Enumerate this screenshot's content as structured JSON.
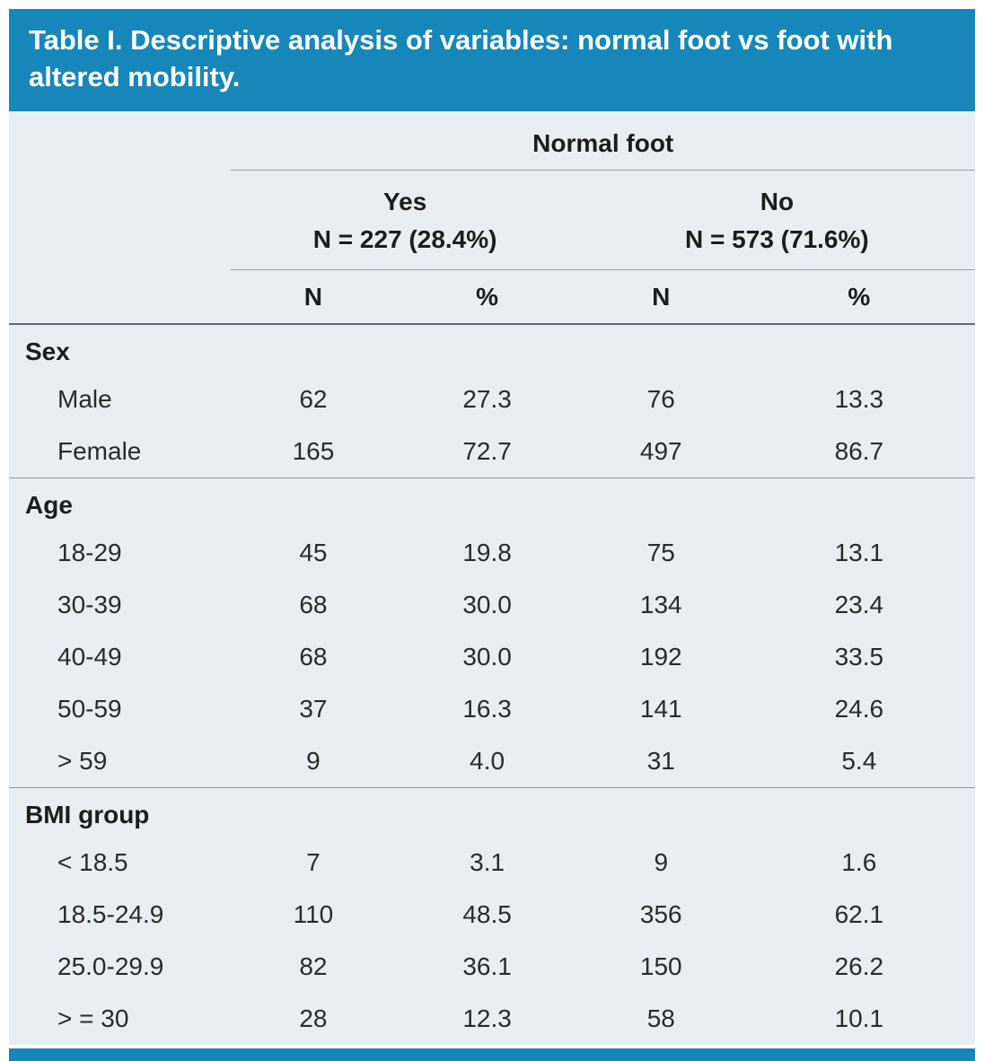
{
  "title": "Table I. Descriptive analysis of variables: normal foot vs foot with altered mobility.",
  "colors": {
    "header_bg": "#1787b9",
    "body_bg": "#e9eef4",
    "rule_light": "#98a2ab",
    "rule_dark": "#5f6c77",
    "text": "#212121"
  },
  "table": {
    "group_header": "Normal foot",
    "groups": [
      {
        "label": "Yes",
        "sub": "N = 227 (28.4%)"
      },
      {
        "label": "No",
        "sub": "N = 573 (71.6%)"
      }
    ],
    "subheaders": [
      "N",
      "%",
      "N",
      "%"
    ],
    "sections": [
      {
        "name": "Sex",
        "rows": [
          {
            "label": "Male",
            "values": [
              "62",
              "27.3",
              "76",
              "13.3"
            ]
          },
          {
            "label": "Female",
            "values": [
              "165",
              "72.7",
              "497",
              "86.7"
            ]
          }
        ]
      },
      {
        "name": "Age",
        "rows": [
          {
            "label": "18-29",
            "values": [
              "45",
              "19.8",
              "75",
              "13.1"
            ]
          },
          {
            "label": "30-39",
            "values": [
              "68",
              "30.0",
              "134",
              "23.4"
            ]
          },
          {
            "label": "40-49",
            "values": [
              "68",
              "30.0",
              "192",
              "33.5"
            ]
          },
          {
            "label": "50-59",
            "values": [
              "37",
              "16.3",
              "141",
              "24.6"
            ]
          },
          {
            "label": "> 59",
            "values": [
              "9",
              "4.0",
              "31",
              "5.4"
            ]
          }
        ]
      },
      {
        "name": "BMI group",
        "rows": [
          {
            "label": "< 18.5",
            "values": [
              "7",
              "3.1",
              "9",
              "1.6"
            ]
          },
          {
            "label": "18.5-24.9",
            "values": [
              "110",
              "48.5",
              "356",
              "62.1"
            ]
          },
          {
            "label": "25.0-29.9",
            "values": [
              "82",
              "36.1",
              "150",
              "26.2"
            ]
          },
          {
            "label": "> = 30",
            "values": [
              "28",
              "12.3",
              "58",
              "10.1"
            ]
          }
        ]
      }
    ]
  }
}
